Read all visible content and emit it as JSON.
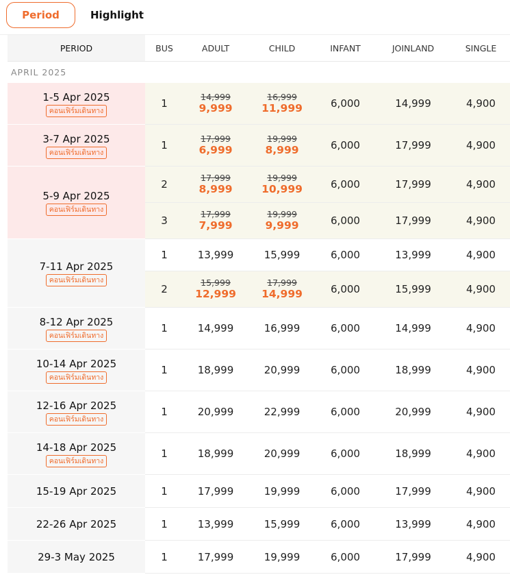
{
  "tabs": {
    "period": "Period",
    "highlight": "Highlight"
  },
  "headers": {
    "period": "PERIOD",
    "bus": "BUS",
    "adult": "ADULT",
    "child": "CHILD",
    "infant": "INFANT",
    "joinland": "JOINLAND",
    "single": "SINGLE"
  },
  "month_label": "APRIL 2025",
  "badge_text": "คอนเฟิร์มเดินทาง",
  "colors": {
    "accent": "#ef6c2c",
    "promo_period_bg": "#fde9e9",
    "promo_row_bg": "#f8f7ec"
  },
  "periods": [
    {
      "dates": "1-5 Apr 2025",
      "confirmed": true,
      "rows": [
        {
          "bus": "1",
          "adult_old": "14,999",
          "adult": "9,999",
          "child_old": "16,999",
          "child": "11,999",
          "infant": "6,000",
          "joinland": "14,999",
          "single": "4,900"
        }
      ]
    },
    {
      "dates": "3-7 Apr 2025",
      "confirmed": true,
      "rows": [
        {
          "bus": "1",
          "adult_old": "17,999",
          "adult": "6,999",
          "child_old": "19,999",
          "child": "8,999",
          "infant": "6,000",
          "joinland": "17,999",
          "single": "4,900"
        }
      ]
    },
    {
      "dates": "5-9 Apr 2025",
      "confirmed": true,
      "rows": [
        {
          "bus": "2",
          "adult_old": "17,999",
          "adult": "8,999",
          "child_old": "19,999",
          "child": "10,999",
          "infant": "6,000",
          "joinland": "17,999",
          "single": "4,900"
        },
        {
          "bus": "3",
          "adult_old": "17,999",
          "adult": "7,999",
          "child_old": "19,999",
          "child": "9,999",
          "infant": "6,000",
          "joinland": "17,999",
          "single": "4,900"
        }
      ]
    },
    {
      "dates": "7-11 Apr 2025",
      "confirmed": true,
      "rows": [
        {
          "bus": "1",
          "adult_old": "",
          "adult": "13,999",
          "child_old": "",
          "child": "15,999",
          "infant": "6,000",
          "joinland": "13,999",
          "single": "4,900"
        },
        {
          "bus": "2",
          "adult_old": "15,999",
          "adult": "12,999",
          "child_old": "17,999",
          "child": "14,999",
          "infant": "6,000",
          "joinland": "15,999",
          "single": "4,900"
        }
      ]
    },
    {
      "dates": "8-12 Apr 2025",
      "confirmed": true,
      "rows": [
        {
          "bus": "1",
          "adult_old": "",
          "adult": "14,999",
          "child_old": "",
          "child": "16,999",
          "infant": "6,000",
          "joinland": "14,999",
          "single": "4,900"
        }
      ]
    },
    {
      "dates": "10-14 Apr 2025",
      "confirmed": true,
      "rows": [
        {
          "bus": "1",
          "adult_old": "",
          "adult": "18,999",
          "child_old": "",
          "child": "20,999",
          "infant": "6,000",
          "joinland": "18,999",
          "single": "4,900"
        }
      ]
    },
    {
      "dates": "12-16 Apr 2025",
      "confirmed": true,
      "rows": [
        {
          "bus": "1",
          "adult_old": "",
          "adult": "20,999",
          "child_old": "",
          "child": "22,999",
          "infant": "6,000",
          "joinland": "20,999",
          "single": "4,900"
        }
      ]
    },
    {
      "dates": "14-18 Apr 2025",
      "confirmed": true,
      "rows": [
        {
          "bus": "1",
          "adult_old": "",
          "adult": "18,999",
          "child_old": "",
          "child": "20,999",
          "infant": "6,000",
          "joinland": "18,999",
          "single": "4,900"
        }
      ]
    },
    {
      "dates": "15-19 Apr 2025",
      "confirmed": false,
      "rows": [
        {
          "bus": "1",
          "adult_old": "",
          "adult": "17,999",
          "child_old": "",
          "child": "19,999",
          "infant": "6,000",
          "joinland": "17,999",
          "single": "4,900"
        }
      ]
    },
    {
      "dates": "22-26 Apr 2025",
      "confirmed": false,
      "rows": [
        {
          "bus": "1",
          "adult_old": "",
          "adult": "13,999",
          "child_old": "",
          "child": "15,999",
          "infant": "6,000",
          "joinland": "13,999",
          "single": "4,900"
        }
      ]
    },
    {
      "dates": "29-3 May 2025",
      "confirmed": false,
      "rows": [
        {
          "bus": "1",
          "adult_old": "",
          "adult": "17,999",
          "child_old": "",
          "child": "19,999",
          "infant": "6,000",
          "joinland": "17,999",
          "single": "4,900"
        }
      ]
    }
  ]
}
